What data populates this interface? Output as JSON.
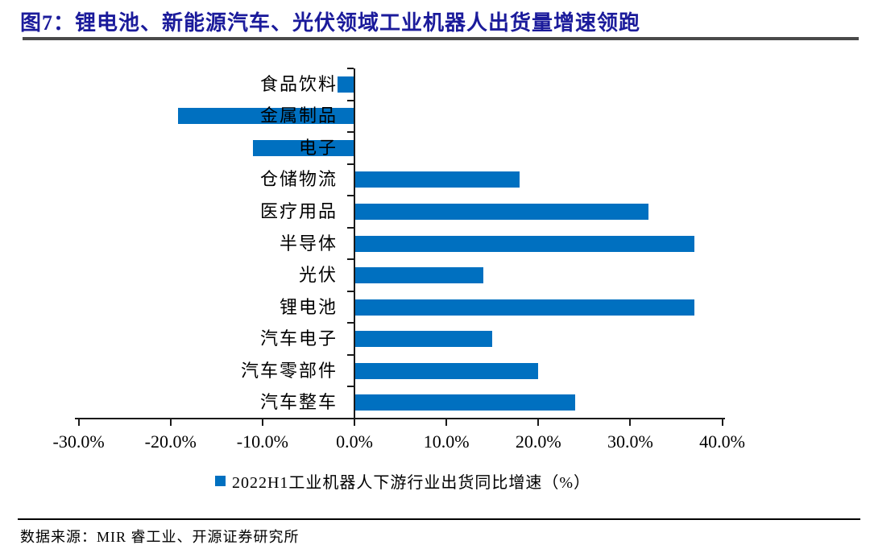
{
  "figure": {
    "title": "图7：锂电池、新能源汽车、光伏领域工业机器人出货量增速领跑",
    "source": "数据来源：MIR 睿工业、开源证券研究所"
  },
  "chart_data": {
    "type": "bar",
    "orientation": "horizontal",
    "title": "",
    "series_name": "2022H1工业机器人下游行业出货同比增速（%）",
    "categories": [
      "食品饮料",
      "金属制品",
      "电子",
      "仓储物流",
      "医疗用品",
      "半导体",
      "光伏",
      "锂电池",
      "汽车电子",
      "汽车零部件",
      "汽车整车"
    ],
    "values": [
      -1.8,
      -19.2,
      -11.0,
      18.0,
      32.0,
      37.0,
      14.0,
      37.0,
      15.0,
      20.0,
      24.0
    ],
    "unit": "%",
    "xlim": [
      -30,
      40
    ],
    "x_tick_values": [
      -30,
      -20,
      -10,
      0,
      10,
      20,
      30,
      40
    ],
    "x_tick_labels": [
      "-30.0%",
      "-20.0%",
      "-10.0%",
      "0.0%",
      "10.0%",
      "20.0%",
      "30.0%",
      "40.0%"
    ],
    "grid": false,
    "legend_position": "bottom",
    "bar_color": "#0070C0"
  },
  "colors": {
    "bar": "#0070C0",
    "title": "#1b1b9b",
    "axis": "#1a1a1a",
    "title_rule": "#4a4a4a"
  }
}
